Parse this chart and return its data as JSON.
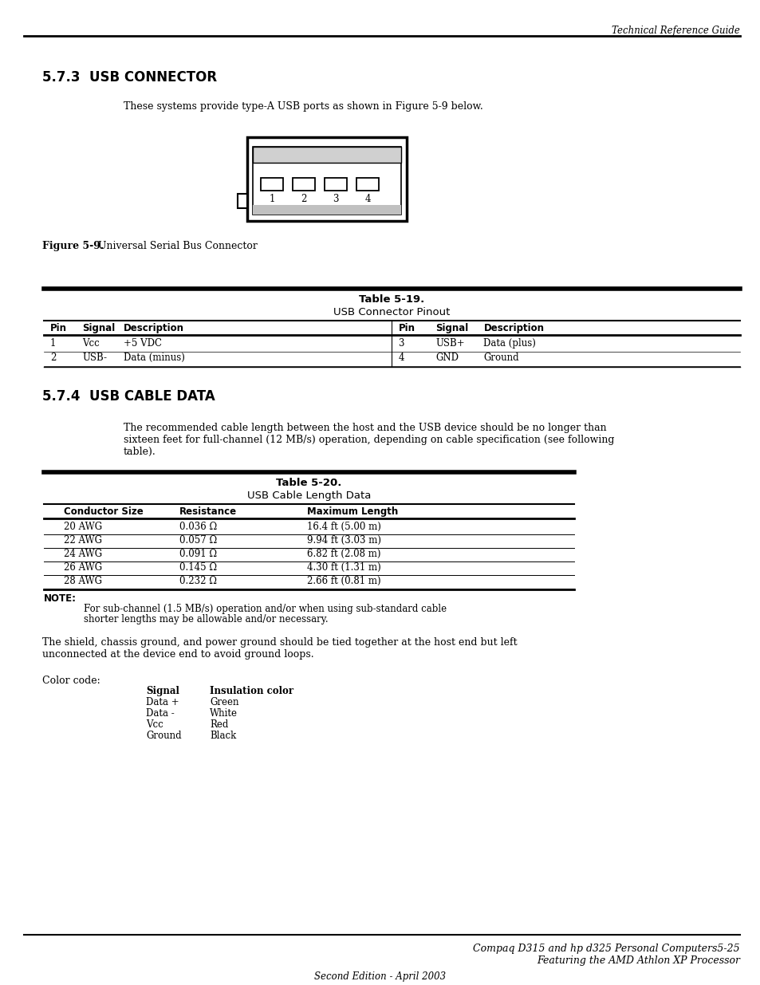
{
  "header_text": "Technical Reference Guide",
  "section1_title": "5.7.3  USB CONNECTOR",
  "section1_intro": "These systems provide type-A USB ports as shown in Figure 5-9 below.",
  "figure_caption_bold": "Figure 5-9.",
  "figure_caption_normal": "   Universal Serial Bus Connector",
  "table1_title1": "Table 5-19.",
  "table1_title2": "USB Connector Pinout",
  "table1_headers": [
    "Pin",
    "Signal",
    "Description",
    "Pin",
    "Signal",
    "Description"
  ],
  "table1_rows": [
    [
      "1",
      "Vcc",
      "+5 VDC",
      "3",
      "USB+",
      "Data (plus)"
    ],
    [
      "2",
      "USB-",
      "Data (minus)",
      "4",
      "GND",
      "Ground"
    ]
  ],
  "section2_title": "5.7.4  USB CABLE DATA",
  "section2_intro1": "The recommended cable length between the host and the USB device should be no longer than",
  "section2_intro2": "sixteen feet for full-channel (12 MB/s) operation, depending on cable specification (see following",
  "section2_intro3": "table).",
  "table2_title1": "Table 5-20.",
  "table2_title2": "USB Cable Length Data",
  "table2_headers": [
    "Conductor Size",
    "Resistance",
    "Maximum Length"
  ],
  "table2_rows": [
    [
      "20 AWG",
      "0.036 Ω",
      "16.4 ft (5.00 m)"
    ],
    [
      "22 AWG",
      "0.057 Ω",
      "9.94 ft (3.03 m)"
    ],
    [
      "24 AWG",
      "0.091 Ω",
      "6.82 ft (2.08 m)"
    ],
    [
      "26 AWG",
      "0.145 Ω",
      "4.30 ft (1.31 m)"
    ],
    [
      "28 AWG",
      "0.232 Ω",
      "2.66 ft (0.81 m)"
    ]
  ],
  "note_label": "NOTE:",
  "note_text1": "For sub-channel (1.5 MB/s) operation and/or when using sub-standard cable",
  "note_text2": "shorter lengths may be allowable and/or necessary.",
  "para2_text1": "The shield, chassis ground, and power ground should be tied together at the host end but left",
  "para2_text2": "unconnected at the device end to avoid ground loops.",
  "color_code_label": "Color code:",
  "color_code_col1": [
    "Signal",
    "Data +",
    "Data -",
    "Vcc",
    "Ground"
  ],
  "color_code_col2": [
    "Insulation color",
    "Green",
    "White",
    "Red",
    "Black"
  ],
  "footer_text1": "Compaq D315 and hp d325 Personal Computers",
  "footer_text2": "5-25",
  "footer_text3": "Featuring the AMD Athlon XP Processor",
  "footer_bottom": "Second Edition - April 2003",
  "bg_color": "#ffffff"
}
